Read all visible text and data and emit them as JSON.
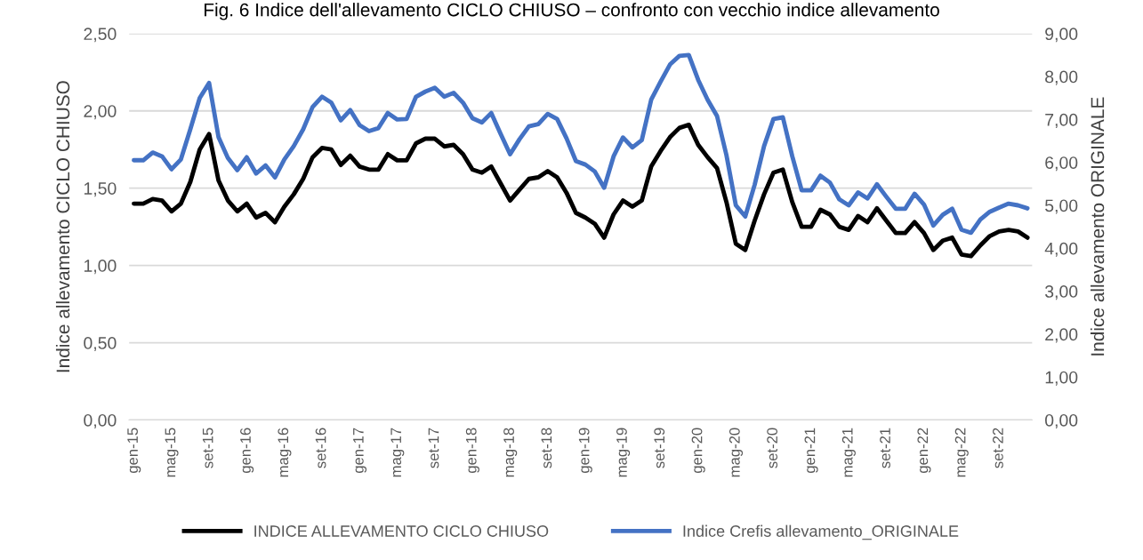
{
  "chart_data": {
    "type": "line",
    "title": "Fig. 6 Indice dell'allevamento CICLO CHIUSO – confronto con vecchio indice allevamento",
    "ylabel": "Indice allevamento CICLO CHIUSO",
    "y2label": "Indice allevamento ORIGINALE",
    "categories": [
      "gen-15",
      null,
      null,
      null,
      "mag-15",
      null,
      null,
      null,
      "set-15",
      null,
      null,
      null,
      "gen-16",
      null,
      null,
      null,
      "mag-16",
      null,
      null,
      null,
      "set-16",
      null,
      null,
      null,
      "gen-17",
      null,
      null,
      null,
      "mag-17",
      null,
      null,
      null,
      "set-17",
      null,
      null,
      null,
      "gen-18",
      null,
      null,
      null,
      "mag-18",
      null,
      null,
      null,
      "set-18",
      null,
      null,
      null,
      "gen-19",
      null,
      null,
      null,
      "mag-19",
      null,
      null,
      null,
      "set-19",
      null,
      null,
      null,
      "gen-20",
      null,
      null,
      null,
      "mag-20",
      null,
      null,
      null,
      "set-20",
      null,
      null,
      null,
      "gen-21",
      null,
      null,
      null,
      "mag-21",
      null,
      null,
      null,
      "set-21",
      null,
      null,
      null,
      "gen-22",
      null,
      null,
      null,
      "mag-22",
      null,
      null,
      null,
      "set-22",
      null,
      null,
      null
    ],
    "series": [
      {
        "name": "INDICE ALLEVAMENTO CICLO CHIUSO",
        "color": "#000000",
        "values": [
          1.4,
          1.4,
          1.43,
          1.42,
          1.35,
          1.4,
          1.54,
          1.75,
          1.85,
          1.55,
          1.42,
          1.35,
          1.4,
          1.31,
          1.34,
          1.28,
          1.38,
          1.46,
          1.56,
          1.7,
          1.76,
          1.75,
          1.65,
          1.71,
          1.64,
          1.62,
          1.62,
          1.72,
          1.68,
          1.68,
          1.79,
          1.82,
          1.82,
          1.77,
          1.78,
          1.72,
          1.62,
          1.6,
          1.64,
          1.53,
          1.42,
          1.49,
          1.56,
          1.57,
          1.61,
          1.57,
          1.47,
          1.34,
          1.31,
          1.27,
          1.18,
          1.33,
          1.42,
          1.38,
          1.42,
          1.64,
          1.74,
          1.83,
          1.89,
          1.91,
          1.78,
          1.7,
          1.63,
          1.41,
          1.14,
          1.1,
          1.29,
          1.46,
          1.6,
          1.62,
          1.41,
          1.25,
          1.25,
          1.36,
          1.33,
          1.25,
          1.23,
          1.32,
          1.28,
          1.37,
          1.29,
          1.21,
          1.21,
          1.28,
          1.21,
          1.1,
          1.16,
          1.18,
          1.07,
          1.06,
          1.13,
          1.19,
          1.22,
          1.23,
          1.22,
          1.18
        ]
      },
      {
        "name": "Indice Crefis allevamento_ORIGINALE",
        "color": "#4472c4",
        "axis": "y2",
        "values": [
          6.05,
          6.05,
          6.23,
          6.14,
          5.84,
          6.07,
          6.77,
          7.5,
          7.85,
          6.59,
          6.1,
          5.82,
          6.12,
          5.74,
          5.93,
          5.65,
          6.07,
          6.38,
          6.77,
          7.29,
          7.53,
          7.39,
          6.98,
          7.22,
          6.87,
          6.73,
          6.8,
          7.15,
          7.0,
          7.01,
          7.53,
          7.65,
          7.74,
          7.53,
          7.62,
          7.39,
          7.03,
          6.93,
          7.15,
          6.66,
          6.19,
          6.54,
          6.84,
          6.89,
          7.13,
          7.01,
          6.56,
          6.03,
          5.95,
          5.79,
          5.41,
          6.14,
          6.58,
          6.35,
          6.52,
          7.46,
          7.88,
          8.28,
          8.48,
          8.5,
          7.92,
          7.46,
          7.08,
          6.17,
          5.0,
          4.74,
          5.48,
          6.38,
          7.01,
          7.05,
          6.14,
          5.35,
          5.35,
          5.69,
          5.53,
          5.14,
          5.0,
          5.3,
          5.16,
          5.49,
          5.2,
          4.92,
          4.92,
          5.27,
          5.02,
          4.53,
          4.78,
          4.92,
          4.43,
          4.36,
          4.67,
          4.85,
          4.95,
          5.04,
          5.0,
          4.93
        ]
      }
    ],
    "ylim": [
      0,
      2.5
    ],
    "yticks": [
      {
        "value": 0,
        "label": "0,00"
      },
      {
        "value": 0.5,
        "label": "0,50"
      },
      {
        "value": 1.0,
        "label": "1,00"
      },
      {
        "value": 1.5,
        "label": "1,50"
      },
      {
        "value": 2.0,
        "label": "2,00"
      },
      {
        "value": 2.5,
        "label": "2,50"
      }
    ],
    "y2lim": [
      0,
      9
    ],
    "y2ticks": [
      {
        "value": 0,
        "label": "0,00"
      },
      {
        "value": 1,
        "label": "1,00"
      },
      {
        "value": 2,
        "label": "2,00"
      },
      {
        "value": 3,
        "label": "3,00"
      },
      {
        "value": 4,
        "label": "4,00"
      },
      {
        "value": 5,
        "label": "5,00"
      },
      {
        "value": 6,
        "label": "6,00"
      },
      {
        "value": 7,
        "label": "7,00"
      },
      {
        "value": 8,
        "label": "8,00"
      },
      {
        "value": 9,
        "label": "9,00"
      }
    ],
    "grid": "y",
    "legend": "bottom",
    "marker": "none",
    "line_style": "solid"
  }
}
